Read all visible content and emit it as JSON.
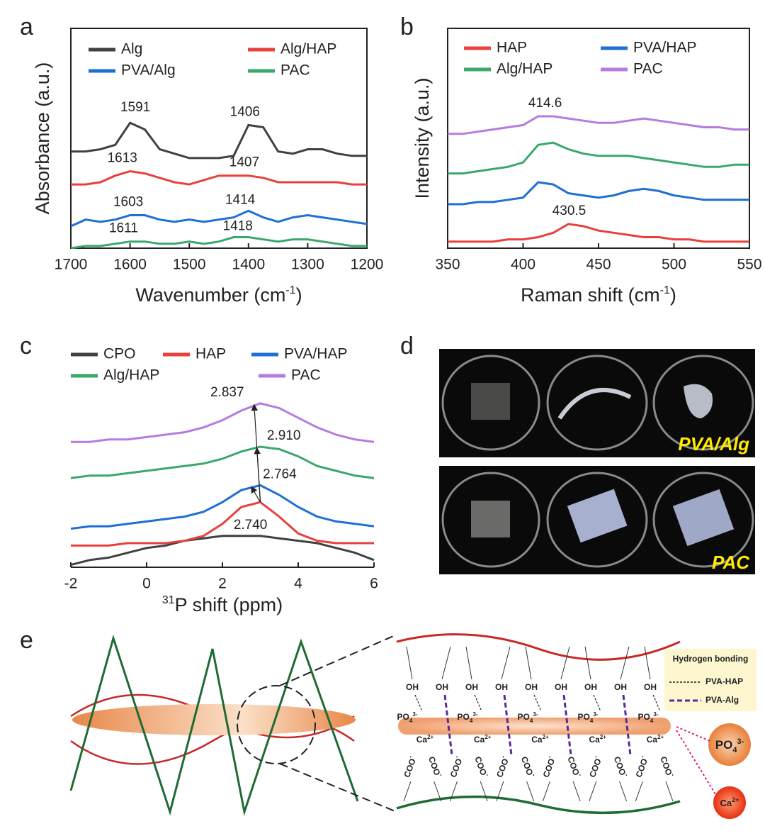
{
  "panel_labels": [
    "a",
    "b",
    "c",
    "d",
    "e"
  ],
  "chart_data": [
    {
      "type": "line",
      "frame": true,
      "xlabel": [
        "Wavenumber (cm",
        "-1",
        ")"
      ],
      "ylabel": "Absorbance (a.u.)",
      "xlim": [
        1700,
        1200
      ],
      "xticks": [
        1700,
        1600,
        1500,
        1400,
        1300,
        1200
      ],
      "ylim": [
        0,
        100
      ],
      "x": [
        1700,
        1675,
        1650,
        1625,
        1600,
        1575,
        1550,
        1525,
        1500,
        1475,
        1450,
        1425,
        1400,
        1375,
        1350,
        1325,
        1300,
        1275,
        1250,
        1225,
        1200
      ],
      "series": [
        {
          "name": "Alg",
          "color": "#404040",
          "values": [
            44,
            44,
            45,
            47,
            57,
            54,
            45,
            43,
            41,
            41,
            41,
            42,
            56,
            55,
            44,
            43,
            45,
            45,
            43,
            42,
            42
          ]
        },
        {
          "name": "Alg/HAP",
          "color": "#e8413c",
          "values": [
            29,
            29,
            30,
            33,
            35,
            34,
            32,
            30,
            29,
            31,
            33,
            33,
            33,
            32,
            30,
            30,
            30,
            30,
            30,
            29,
            29
          ]
        },
        {
          "name": "PVA/Alg",
          "color": "#1f6fd6",
          "values": [
            10,
            13,
            12,
            13,
            15,
            15,
            13,
            12,
            13,
            12,
            13,
            14,
            17,
            14,
            12,
            14,
            15,
            14,
            13,
            12,
            11
          ]
        },
        {
          "name": "PAC",
          "color": "#3aa86a",
          "values": [
            0,
            1,
            1,
            2,
            3,
            3,
            2,
            2,
            3,
            2,
            3,
            5,
            5,
            4,
            3,
            4,
            4,
            3,
            2,
            1,
            1
          ]
        }
      ],
      "annotations": [
        {
          "label": "1591",
          "x": 1591,
          "y": 59
        },
        {
          "label": "1406",
          "x": 1406,
          "y": 57
        },
        {
          "label": "1613",
          "x": 1613,
          "y": 36
        },
        {
          "label": "1407",
          "x": 1407,
          "y": 34
        },
        {
          "label": "1603",
          "x": 1603,
          "y": 16
        },
        {
          "label": "1414",
          "x": 1414,
          "y": 17
        },
        {
          "label": "1611",
          "x": 1611,
          "y": 4
        },
        {
          "label": "1418",
          "x": 1418,
          "y": 5
        }
      ]
    },
    {
      "type": "line",
      "frame": true,
      "xlabel": [
        "Raman shift (cm",
        "-1",
        ")"
      ],
      "ylabel": "Intensity (a.u.)",
      "xlim": [
        350,
        550
      ],
      "xticks": [
        350,
        400,
        450,
        500,
        550
      ],
      "ylim": [
        0,
        100
      ],
      "x": [
        350,
        360,
        370,
        380,
        390,
        400,
        410,
        420,
        430,
        440,
        450,
        460,
        470,
        480,
        490,
        500,
        510,
        520,
        530,
        540,
        550
      ],
      "series": [
        {
          "name": "HAP",
          "color": "#e8413c",
          "values": [
            3,
            3,
            3,
            3,
            4,
            4,
            5,
            7,
            11,
            10,
            8,
            7,
            6,
            5,
            5,
            4,
            4,
            3,
            3,
            3,
            3
          ]
        },
        {
          "name": "PVA/HAP",
          "color": "#1f6fd6",
          "values": [
            20,
            20,
            21,
            21,
            22,
            23,
            30,
            29,
            25,
            24,
            23,
            24,
            26,
            27,
            26,
            24,
            23,
            22,
            22,
            22,
            22
          ]
        },
        {
          "name": "Alg/HAP",
          "color": "#3aa86a",
          "values": [
            34,
            34,
            35,
            36,
            37,
            39,
            47,
            48,
            45,
            43,
            42,
            42,
            42,
            41,
            40,
            39,
            38,
            37,
            37,
            38,
            38
          ]
        },
        {
          "name": "PAC",
          "color": "#b57be0",
          "values": [
            52,
            52,
            53,
            54,
            55,
            56,
            60,
            60,
            59,
            58,
            57,
            57,
            58,
            59,
            58,
            57,
            56,
            55,
            55,
            54,
            54
          ]
        }
      ],
      "annotations": [
        {
          "label": "414.6",
          "x": 414.6,
          "y": 61
        },
        {
          "label": "430.5",
          "x": 430.5,
          "y": 12
        }
      ]
    },
    {
      "type": "line",
      "frame": false,
      "xlabel": [
        "31",
        "P shift (ppm)"
      ],
      "xlim": [
        -2,
        6
      ],
      "xticks": [
        -2,
        0,
        2,
        4,
        6
      ],
      "ylim": [
        0,
        100
      ],
      "x": [
        -2,
        -1.5,
        -1,
        -0.5,
        0,
        0.5,
        1,
        1.5,
        2,
        2.5,
        3,
        3.5,
        4,
        4.5,
        5,
        5.5,
        6
      ],
      "series": [
        {
          "name": "CPO",
          "color": "#404040",
          "values": [
            1,
            3,
            4,
            6,
            8,
            9,
            11,
            12,
            13,
            13,
            13,
            12,
            11,
            10,
            8,
            6,
            3
          ]
        },
        {
          "name": "HAP",
          "color": "#e8413c",
          "values": [
            9,
            9,
            9,
            10,
            10,
            10,
            11,
            13,
            18,
            25,
            27,
            21,
            14,
            11,
            10,
            10,
            10
          ]
        },
        {
          "name": "PVA/HAP",
          "color": "#1f6fd6",
          "values": [
            16,
            17,
            17,
            18,
            19,
            20,
            21,
            23,
            27,
            32,
            34,
            30,
            25,
            21,
            19,
            18,
            17
          ]
        },
        {
          "name": "Alg/HAP",
          "color": "#3aa86a",
          "values": [
            37,
            38,
            38,
            39,
            40,
            41,
            42,
            43,
            45,
            48,
            50,
            49,
            46,
            42,
            40,
            38,
            37
          ]
        },
        {
          "name": "PAC",
          "color": "#b57be0",
          "values": [
            52,
            52,
            53,
            53,
            54,
            55,
            56,
            58,
            61,
            65,
            68,
            66,
            62,
            58,
            55,
            53,
            52
          ]
        }
      ],
      "annotations": [
        {
          "label": "2.837",
          "x": 2.837,
          "y": 68
        },
        {
          "label": "2.910",
          "x": 2.91,
          "y": 50
        },
        {
          "label": "2.764",
          "x": 2.764,
          "y": 34
        },
        {
          "label": "2.740",
          "x": 2.74,
          "y": 13
        }
      ]
    }
  ],
  "photos": {
    "labels": [
      "PVA/Alg",
      "PAC"
    ]
  },
  "schematic": {
    "legend_title": "Hydrogen bonding",
    "legend_items": [
      "PVA-HAP",
      "PVA-Alg"
    ],
    "oh": [
      "OH",
      "OH",
      "OH",
      "OH",
      "OH",
      "OH",
      "OH",
      "OH",
      "OH"
    ],
    "po4": [
      [
        "PO",
        "4",
        "3-"
      ],
      [
        "PO",
        "4",
        "3-"
      ],
      [
        "PO",
        "4",
        "3-"
      ],
      [
        "PO",
        "4",
        "3-"
      ],
      [
        "PO",
        "4",
        "3-"
      ]
    ],
    "ca": [
      [
        "Ca",
        "2+"
      ],
      [
        "Ca",
        "2+"
      ],
      [
        "Ca",
        "2+"
      ],
      [
        "Ca",
        "2+"
      ],
      [
        "Ca",
        "2+"
      ]
    ],
    "coo": [
      "COO",
      "COO",
      "COO",
      "COO",
      "COO",
      "COO",
      "COO",
      "COO",
      "COO",
      "COO",
      "COO",
      "COO"
    ],
    "coo_charge": "-",
    "bead_po4": [
      "PO",
      "4",
      "3-"
    ],
    "bead_ca": [
      "Ca",
      "2+"
    ]
  }
}
